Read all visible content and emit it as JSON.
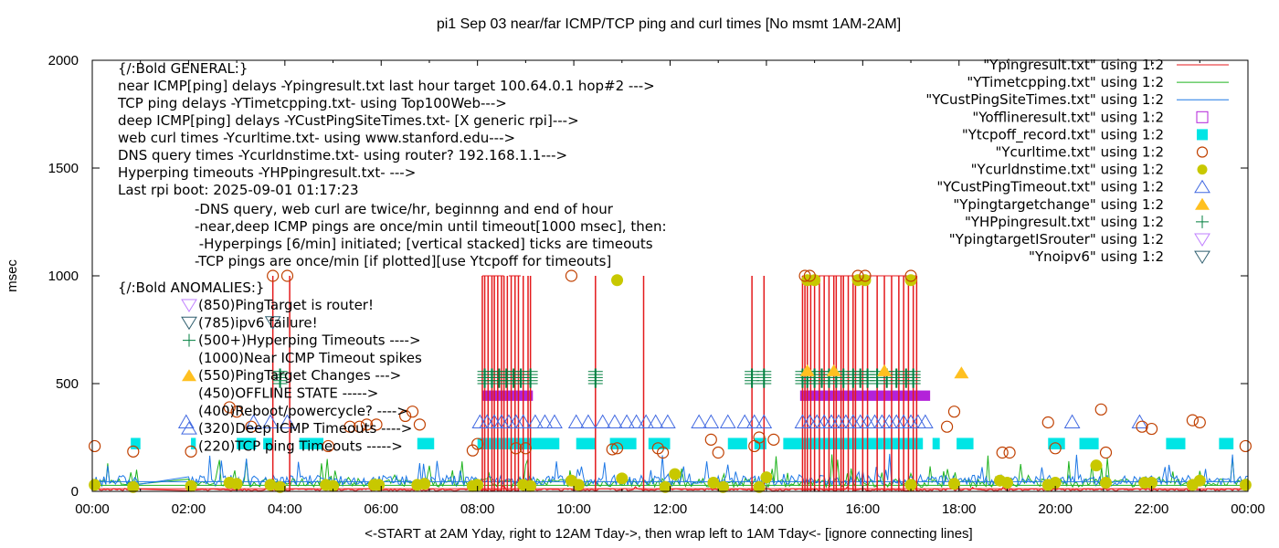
{
  "chart_data": {
    "type": "line",
    "title": "pi1 Sep 03  near/far ICMP/TCP ping and curl times [No msmt 1AM-2AM]",
    "xlabel": "<-START at 2AM Yday, right to 12AM Tday->, then wrap left to 1AM Tday<- [ignore connecting lines]",
    "ylabel": "msec",
    "xlim": [
      0,
      24
    ],
    "ylim": [
      0,
      2000
    ],
    "x_ticks": [
      "00:00",
      "02:00",
      "04:00",
      "06:00",
      "08:00",
      "10:00",
      "12:00",
      "14:00",
      "16:00",
      "18:00",
      "20:00",
      "22:00",
      "00:00"
    ],
    "y_ticks": [
      "0",
      "500",
      "1000",
      "1500",
      "2000"
    ],
    "y_tick_values": [
      0,
      500,
      1000,
      1500,
      2000
    ],
    "grid": false,
    "legend_position": "top-right",
    "legend": [
      {
        "label": "\"Ypingresult.txt\" using 1:2",
        "style": "line",
        "color": "#e41a1c"
      },
      {
        "label": "\"YTimetcpping.txt\" using 1:2",
        "style": "line",
        "color": "#1fb31f"
      },
      {
        "label": "\"YCustPingSiteTimes.txt\" using 1:2",
        "style": "line",
        "color": "#1e78e6"
      },
      {
        "label": "\"Yofflineresult.txt\" using 1:2",
        "style": "open-square",
        "color": "#b322d9"
      },
      {
        "label": "\"Ytcpoff_record.txt\" using 1:2",
        "style": "filled-square",
        "color": "#00e5e5"
      },
      {
        "label": "\"Ycurltime.txt\" using 1:2",
        "style": "open-circle",
        "color": "#c04000"
      },
      {
        "label": "\"Ycurldnstime.txt\" using 1:2",
        "style": "filled-circle",
        "color": "#c8c800"
      },
      {
        "label": "\"YCustPingTimeout.txt\" using 1:2",
        "style": "open-triangle",
        "color": "#4169e1"
      },
      {
        "label": "\"Ypingtargetchange\" using 1:2",
        "style": "filled-triangle",
        "color": "#ffc020"
      },
      {
        "label": "\"YHPpingresult.txt\" using 1:2",
        "style": "plus",
        "color": "#007f3f"
      },
      {
        "label": "\"YpingtargetISrouter\" using 1:2",
        "style": "open-down-triangle",
        "color": "#c080ff"
      },
      {
        "label": "\"Ynoipv6\" using 1:2",
        "style": "open-down-triangle",
        "color": "#2f5f6f"
      }
    ],
    "annotations_general": [
      "{/:Bold GENERAL:}",
      "near ICMP[ping] delays -Ypingresult.txt last hour target 100.64.0.1 hop#2 --->",
      "TCP ping delays -YTimetcpping.txt- using Top100Web--->",
      "deep ICMP[ping] delays -YCustPingSiteTimes.txt- [X generic rpi]--->",
      "web curl times -Ycurltime.txt- using www.stanford.edu--->",
      "DNS query times -Ycurldnstime.txt- using router? 192.168.1.1--->",
      "Hyperping timeouts -YHPpingresult.txt- --->",
      "Last rpi boot: 2025-09-01 01:17:23"
    ],
    "annotations_notes": [
      "-DNS query, web curl are twice/hr, beginnng and end of hour",
      "-near,deep ICMP pings are once/min until timeout[1000 msec], then:",
      " -Hyperpings [6/min] initiated; [vertical stacked] ticks are timeouts",
      "-TCP pings are once/min [if plotted][use Ytcpoff for timeouts]"
    ],
    "annotations_anomalies_title": "{/:Bold ANOMALIES:}",
    "annotations_anomalies": [
      {
        "text": "(850)PingTarget is router!",
        "marker": "open-down-triangle",
        "color": "#c080ff"
      },
      {
        "text": "(785)ipv6 failure!",
        "marker": "open-down-triangle",
        "color": "#2f5f6f"
      },
      {
        "text": "(500+)Hyperping Timeouts ---->",
        "marker": "plus",
        "color": "#007f3f"
      },
      {
        "text": "(1000)Near ICMP Timeout spikes",
        "marker": "none",
        "color": ""
      },
      {
        "text": "(550)PingTarget Changes --->",
        "marker": "filled-triangle",
        "color": "#ffc020"
      },
      {
        "text": "(450)OFFLINE STATE ----->",
        "marker": "none",
        "color": ""
      },
      {
        "text": "(400)Reboot/powercycle? ---->",
        "marker": "none",
        "color": ""
      },
      {
        "text": "(320)Deep ICMP Timeouts ---->",
        "marker": "open-triangle",
        "color": "#4169e1"
      },
      {
        "text": "(220)TCP ping Timeouts ----->",
        "marker": "none",
        "color": ""
      }
    ],
    "series": {
      "near_icmp_spikes_x": [
        8.1,
        8.15,
        8.22,
        8.3,
        8.35,
        8.42,
        8.5,
        8.55,
        8.62,
        8.7,
        8.78,
        8.85,
        8.95,
        9.05,
        9.1,
        3.75,
        4.1,
        10.45,
        11.45,
        13.7,
        13.95,
        14.75,
        14.8,
        14.85,
        14.92,
        15.0,
        15.1,
        15.2,
        15.3,
        15.4,
        15.45,
        15.55,
        15.6,
        15.7,
        15.8,
        15.85,
        16.0,
        16.1,
        16.3,
        16.45,
        16.6,
        16.75,
        16.85,
        16.95,
        17.05,
        17.12
      ],
      "offline_blocks": [
        [
          8.1,
          9.15
        ],
        [
          14.7,
          17.4
        ]
      ],
      "tcpoff_blocks": [
        [
          0.8,
          1.0
        ],
        [
          2.05,
          2.15
        ],
        [
          3.0,
          3.4
        ],
        [
          3.55,
          3.75
        ],
        [
          4.3,
          4.8
        ],
        [
          6.75,
          7.1
        ],
        [
          8.0,
          9.7
        ],
        [
          10.05,
          10.45
        ],
        [
          10.75,
          11.3
        ],
        [
          11.55,
          12.0
        ],
        [
          13.2,
          13.6
        ],
        [
          13.75,
          14.0
        ],
        [
          14.35,
          17.25
        ],
        [
          17.45,
          17.6
        ],
        [
          17.95,
          18.3
        ],
        [
          19.85,
          20.2
        ],
        [
          20.5,
          20.9
        ],
        [
          22.3,
          22.7
        ],
        [
          23.4,
          23.7
        ]
      ],
      "curl_points": [
        [
          0.05,
          210
        ],
        [
          0.85,
          185
        ],
        [
          2.05,
          185
        ],
        [
          2.85,
          390
        ],
        [
          3.0,
          370
        ],
        [
          3.3,
          300
        ],
        [
          3.75,
          1000
        ],
        [
          4.05,
          1000
        ],
        [
          4.9,
          210
        ],
        [
          5.35,
          300
        ],
        [
          5.55,
          300
        ],
        [
          5.7,
          310
        ],
        [
          5.9,
          310
        ],
        [
          6.5,
          350
        ],
        [
          6.65,
          370
        ],
        [
          6.8,
          310
        ],
        [
          7.9,
          190
        ],
        [
          8.0,
          220
        ],
        [
          8.8,
          200
        ],
        [
          9.0,
          200
        ],
        [
          9.95,
          1000
        ],
        [
          10.8,
          195
        ],
        [
          10.9,
          200
        ],
        [
          11.75,
          200
        ],
        [
          11.85,
          180
        ],
        [
          12.85,
          240
        ],
        [
          13.0,
          180
        ],
        [
          13.75,
          210
        ],
        [
          13.85,
          250
        ],
        [
          14.15,
          240
        ],
        [
          14.8,
          1000
        ],
        [
          14.9,
          1000
        ],
        [
          15.9,
          1000
        ],
        [
          16.05,
          1000
        ],
        [
          17.0,
          1000
        ],
        [
          17.75,
          300
        ],
        [
          17.9,
          370
        ],
        [
          18.9,
          180
        ],
        [
          19.05,
          180
        ],
        [
          19.85,
          320
        ],
        [
          20.0,
          200
        ],
        [
          20.95,
          380
        ],
        [
          21.05,
          180
        ],
        [
          21.8,
          300
        ],
        [
          22.0,
          290
        ],
        [
          22.85,
          330
        ],
        [
          23.0,
          320
        ],
        [
          23.95,
          210
        ]
      ],
      "dns_points": [
        [
          0.05,
          30
        ],
        [
          0.85,
          20
        ],
        [
          2.05,
          25
        ],
        [
          2.85,
          40
        ],
        [
          3.0,
          35
        ],
        [
          3.7,
          30
        ],
        [
          3.9,
          20
        ],
        [
          4.85,
          30
        ],
        [
          5.0,
          25
        ],
        [
          5.85,
          30
        ],
        [
          5.95,
          30
        ],
        [
          6.75,
          30
        ],
        [
          6.9,
          35
        ],
        [
          7.9,
          25
        ],
        [
          8.0,
          30
        ],
        [
          8.95,
          30
        ],
        [
          9.1,
          25
        ],
        [
          9.95,
          50
        ],
        [
          10.1,
          30
        ],
        [
          10.9,
          980
        ],
        [
          11.0,
          60
        ],
        [
          11.9,
          20
        ],
        [
          12.1,
          80
        ],
        [
          12.9,
          40
        ],
        [
          13.1,
          20
        ],
        [
          13.85,
          20
        ],
        [
          14.0,
          65
        ],
        [
          14.85,
          980
        ],
        [
          15.0,
          980
        ],
        [
          15.9,
          980
        ],
        [
          16.05,
          980
        ],
        [
          17.0,
          980
        ],
        [
          17.0,
          30
        ],
        [
          17.9,
          35
        ],
        [
          18.85,
          50
        ],
        [
          19.0,
          40
        ],
        [
          19.85,
          30
        ],
        [
          20.0,
          40
        ],
        [
          20.85,
          120
        ],
        [
          21.05,
          40
        ],
        [
          21.85,
          40
        ],
        [
          22.0,
          40
        ],
        [
          22.85,
          30
        ],
        [
          23.0,
          50
        ],
        [
          23.95,
          30
        ]
      ],
      "deep_icmp_timeouts_x": [
        8.05,
        8.2,
        8.35,
        8.5,
        8.65,
        8.8,
        8.95,
        9.2,
        9.4,
        9.6,
        10.05,
        10.3,
        10.6,
        10.85,
        11.1,
        11.3,
        11.5,
        11.7,
        11.95,
        12.6,
        12.85,
        13.2,
        13.55,
        13.75,
        13.95,
        14.75,
        14.9,
        15.05,
        15.2,
        15.35,
        15.5,
        15.65,
        15.8,
        15.95,
        16.1,
        16.25,
        16.4,
        16.55,
        16.7,
        16.85,
        17.0,
        17.15,
        17.3,
        1.95,
        3.35,
        3.7,
        4.05,
        20.35,
        21.75
      ],
      "target_change_points": [
        [
          14.85,
          560
        ],
        [
          15.4,
          560
        ],
        [
          16.45,
          560
        ],
        [
          18.05,
          550
        ]
      ],
      "hyperping_x": [
        8.15,
        8.3,
        8.45,
        8.6,
        8.75,
        8.9,
        9.1,
        3.9,
        10.45,
        13.7,
        13.95,
        14.75,
        14.85,
        15.0,
        15.15,
        15.3,
        15.45,
        15.6,
        15.8,
        15.95,
        16.1,
        16.3,
        16.5,
        16.7,
        16.9,
        17.05
      ],
      "noipv6_points": [
        [
          3.75,
          785
        ]
      ]
    }
  }
}
